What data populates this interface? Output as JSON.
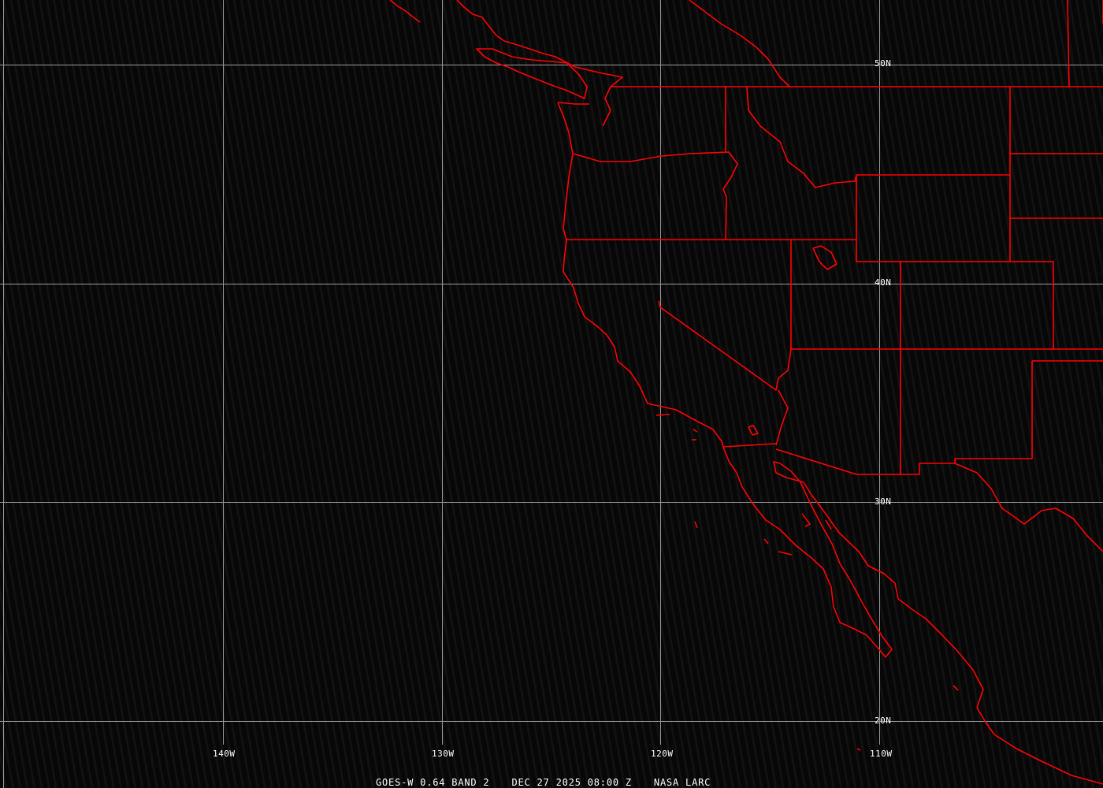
{
  "latitude_labels": [
    "50N",
    "40N",
    "30N",
    "20N"
  ],
  "longitude_labels": [
    "140W",
    "130W",
    "120W",
    "110W"
  ],
  "footer": {
    "product": "GOES-W 0.64 BAND 2",
    "datetime": "DEC 27 2025 08:00 Z",
    "source": "NASA LARC"
  },
  "colors": {
    "boundaries": "#ff0000",
    "grid": "#9a9a9a",
    "background": "#0a0a0a",
    "text": "#ffffff"
  }
}
